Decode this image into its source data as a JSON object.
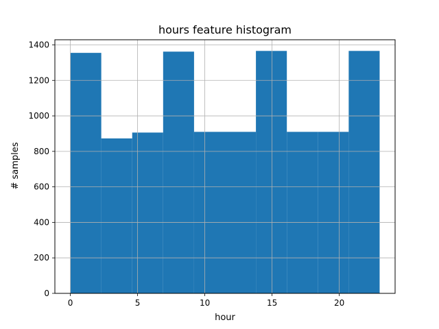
{
  "chart_data": {
    "type": "bar",
    "title": "hours feature histogram",
    "xlabel": "hour",
    "ylabel": "# samples",
    "xlim": [
      -1.15,
      24.15
    ],
    "ylim": [
      0,
      1428.9
    ],
    "grid": true,
    "bar_color": "#1f77b4",
    "bins": [
      {
        "x0": 0,
        "x1": 2.3,
        "value": 1355
      },
      {
        "x0": 2.3,
        "x1": 4.6,
        "value": 873
      },
      {
        "x0": 4.6,
        "x1": 6.9,
        "value": 906
      },
      {
        "x0": 6.9,
        "x1": 9.2,
        "value": 1362
      },
      {
        "x0": 9.2,
        "x1": 11.5,
        "value": 910
      },
      {
        "x0": 11.5,
        "x1": 13.8,
        "value": 910
      },
      {
        "x0": 13.8,
        "x1": 16.1,
        "value": 1366
      },
      {
        "x0": 16.1,
        "x1": 18.4,
        "value": 910
      },
      {
        "x0": 18.4,
        "x1": 20.7,
        "value": 910
      },
      {
        "x0": 20.7,
        "x1": 23.0,
        "value": 1366
      }
    ],
    "xticks": [
      0,
      5,
      10,
      15,
      20
    ],
    "xtick_labels": [
      "0",
      "5",
      "10",
      "15",
      "20"
    ],
    "yticks": [
      0,
      200,
      400,
      600,
      800,
      1000,
      1200,
      1400
    ],
    "ytick_labels": [
      "0",
      "200",
      "400",
      "600",
      "800",
      "1000",
      "1200",
      "1400"
    ]
  }
}
